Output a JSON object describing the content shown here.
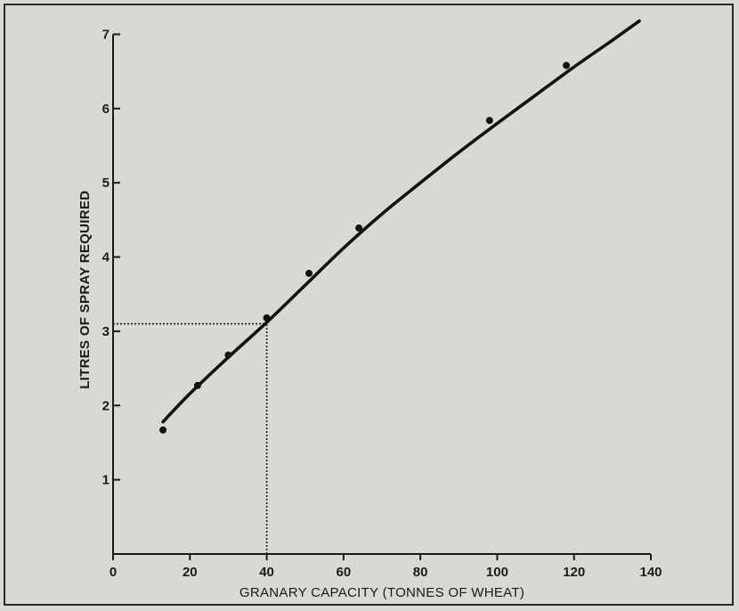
{
  "chart_data": {
    "type": "line",
    "title": "",
    "xlabel": "GRANARY CAPACITY (TONNES OF WHEAT)",
    "ylabel": "LITRES OF SPRAY REQUIRED",
    "xlim": [
      0,
      140
    ],
    "ylim": [
      0,
      7
    ],
    "x_ticks": [
      0,
      20,
      40,
      60,
      80,
      100,
      120,
      140
    ],
    "y_ticks": [
      1,
      2,
      3,
      4,
      5,
      6,
      7
    ],
    "grid": false,
    "series": [
      {
        "kind": "points",
        "x": [
          13,
          22,
          30,
          40,
          51,
          64,
          98,
          118
        ],
        "y": [
          1.67,
          2.27,
          2.68,
          3.18,
          3.78,
          4.39,
          5.84,
          6.58
        ]
      },
      {
        "kind": "curve",
        "x": [
          13,
          20,
          30,
          40,
          50,
          60,
          70,
          80,
          90,
          100,
          110,
          120,
          130,
          137
        ],
        "y": [
          1.78,
          2.16,
          2.65,
          3.12,
          3.62,
          4.12,
          4.58,
          5.0,
          5.41,
          5.8,
          6.18,
          6.56,
          6.92,
          7.18
        ]
      }
    ],
    "annotations": [
      {
        "kind": "reference-lines",
        "x": 40,
        "y": 3.1
      }
    ]
  }
}
